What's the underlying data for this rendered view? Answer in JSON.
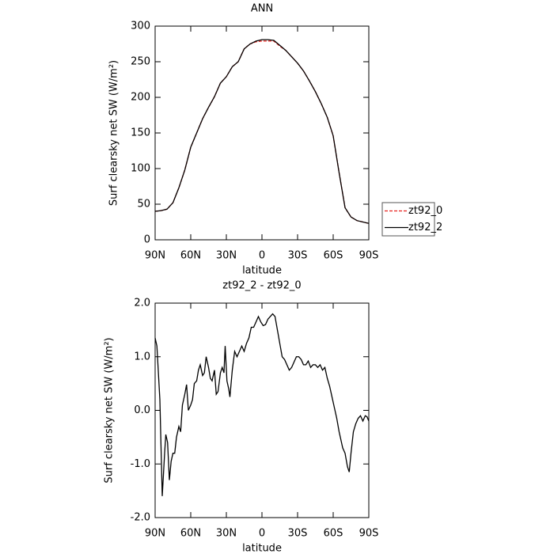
{
  "chart_data": [
    {
      "type": "line",
      "title": "ANN",
      "xlabel": "latitude",
      "ylabel": "Surf clearsky net SW (W/m²)",
      "x": [
        90,
        85,
        80,
        75,
        70,
        65,
        60,
        55,
        50,
        45,
        40,
        35,
        30,
        25,
        20,
        15,
        10,
        5,
        0,
        -5,
        -10,
        -15,
        -20,
        -25,
        -30,
        -35,
        -40,
        -45,
        -50,
        -55,
        -60,
        -65,
        -70,
        -75,
        -80,
        -85,
        -90
      ],
      "series": [
        {
          "name": "zt92_0",
          "color": "#e8231f",
          "style": "dashed",
          "values": [
            40,
            41,
            43,
            52,
            73,
            98,
            130,
            150,
            170,
            186,
            201,
            220,
            229,
            243,
            250,
            268,
            275,
            278,
            279,
            279,
            279,
            272,
            266,
            257,
            248,
            237,
            223,
            208,
            191,
            172,
            146,
            94,
            45,
            32,
            27,
            25,
            23
          ]
        },
        {
          "name": "zt92_2",
          "color": "#000000",
          "style": "solid",
          "values": [
            40,
            41,
            43,
            52,
            73,
            98,
            130,
            150,
            170,
            186,
            201,
            220,
            229,
            243,
            250,
            268,
            275,
            279,
            281,
            281,
            280,
            273,
            266,
            257,
            248,
            237,
            223,
            208,
            191,
            172,
            146,
            94,
            45,
            32,
            27,
            25,
            23
          ]
        }
      ],
      "xlim": [
        90,
        -90
      ],
      "xticks": [
        {
          "value": 90,
          "label": "90N"
        },
        {
          "value": 60,
          "label": "60N"
        },
        {
          "value": 30,
          "label": "30N"
        },
        0,
        {
          "value": -30,
          "label": "30S"
        },
        {
          "value": -60,
          "label": "60S"
        },
        {
          "value": -90,
          "label": "90S"
        }
      ],
      "ylim": [
        0,
        300
      ],
      "yticks": [
        0,
        50,
        100,
        150,
        200,
        250,
        300
      ],
      "legend": "right"
    },
    {
      "type": "line",
      "title": "zt92_2 - zt92_0",
      "xlabel": "latitude",
      "ylabel": "Surf clearsky net SW (W/m²)",
      "x": [
        90,
        88.5,
        86,
        84,
        82,
        81,
        79.5,
        78,
        76.5,
        75,
        73.5,
        72,
        70,
        68.5,
        67,
        65,
        63.5,
        62,
        60,
        58.5,
        57,
        55,
        53.5,
        52,
        50,
        48.5,
        47,
        45,
        43.5,
        42,
        40,
        38.5,
        37,
        35,
        33.5,
        32,
        31,
        29.5,
        28,
        27,
        25,
        23,
        21,
        19,
        17,
        15,
        13,
        11,
        9,
        7,
        5,
        3,
        1,
        -1,
        -3,
        -5,
        -7,
        -9,
        -11,
        -13,
        -15,
        -17,
        -19,
        -21,
        -23,
        -25,
        -27,
        -29,
        -31,
        -33,
        -35,
        -37,
        -39,
        -41,
        -43,
        -45,
        -47,
        -49,
        -51,
        -53,
        -55,
        -57,
        -59,
        -61,
        -63,
        -65,
        -67,
        -68,
        -70,
        -72,
        -73.5,
        -75,
        -77,
        -79,
        -81,
        -83,
        -85,
        -87,
        -88.5,
        -90
      ],
      "series": [
        {
          "name": "zt92_2 - zt92_0",
          "color": "#000000",
          "style": "solid",
          "values": [
            1.35,
            1.2,
            0.2,
            -1.6,
            -0.8,
            -0.45,
            -0.6,
            -1.3,
            -0.95,
            -0.8,
            -0.8,
            -0.5,
            -0.3,
            -0.4,
            0.1,
            0.3,
            0.48,
            0.0,
            0.1,
            0.2,
            0.5,
            0.55,
            0.75,
            0.85,
            0.65,
            0.7,
            1.0,
            0.8,
            0.6,
            0.55,
            0.75,
            0.3,
            0.35,
            0.7,
            0.8,
            0.7,
            1.2,
            0.55,
            0.4,
            0.25,
            0.75,
            1.1,
            1.0,
            1.1,
            1.2,
            1.1,
            1.25,
            1.35,
            1.55,
            1.55,
            1.65,
            1.75,
            1.65,
            1.58,
            1.6,
            1.7,
            1.75,
            1.8,
            1.75,
            1.5,
            1.25,
            1.0,
            0.95,
            0.85,
            0.75,
            0.8,
            0.9,
            1.0,
            1.0,
            0.95,
            0.85,
            0.85,
            0.92,
            0.8,
            0.85,
            0.85,
            0.8,
            0.85,
            0.75,
            0.8,
            0.6,
            0.45,
            0.25,
            0.05,
            -0.15,
            -0.4,
            -0.6,
            -0.7,
            -0.8,
            -1.05,
            -1.15,
            -0.8,
            -0.4,
            -0.25,
            -0.15,
            -0.1,
            -0.2,
            -0.1,
            -0.12,
            -0.2
          ]
        }
      ],
      "xlim": [
        90,
        -90
      ],
      "xticks": [
        {
          "value": 90,
          "label": "90N"
        },
        {
          "value": 60,
          "label": "60N"
        },
        {
          "value": 30,
          "label": "30N"
        },
        0,
        {
          "value": -30,
          "label": "30S"
        },
        {
          "value": -60,
          "label": "60S"
        },
        {
          "value": -90,
          "label": "90S"
        }
      ],
      "ylim": [
        -2,
        2
      ],
      "yticks": [
        {
          "value": -2,
          "label": "-2.0"
        },
        {
          "value": -1,
          "label": "-1.0"
        },
        {
          "value": 0,
          "label": "0.0"
        },
        {
          "value": 1,
          "label": "1.0"
        },
        {
          "value": 2,
          "label": "2.0"
        }
      ]
    }
  ]
}
